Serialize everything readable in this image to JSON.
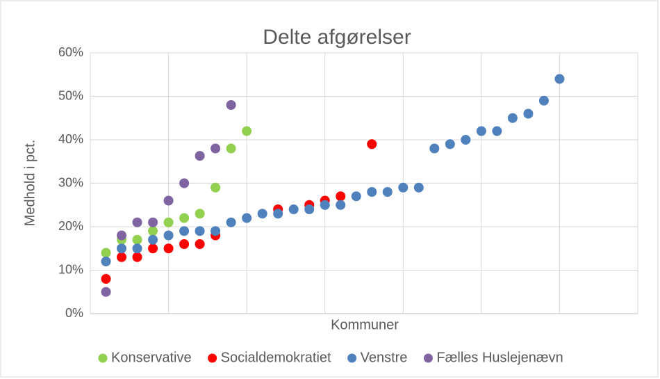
{
  "chart_data": {
    "type": "scatter",
    "title": "Delte afgørelser",
    "x_label": "Kommuner",
    "y_label": "Medhold i pct.",
    "xlim": [
      0,
      35
    ],
    "xticks": [
      0,
      5,
      10,
      15,
      20,
      25,
      30,
      35
    ],
    "ylim": [
      0,
      60
    ],
    "yticks": [
      {
        "value": 0,
        "label": "0%"
      },
      {
        "value": 10,
        "label": "10%"
      },
      {
        "value": 20,
        "label": "20%"
      },
      {
        "value": 30,
        "label": "30%"
      },
      {
        "value": 40,
        "label": "40%"
      },
      {
        "value": 50,
        "label": "50%"
      },
      {
        "value": 60,
        "label": "60%"
      }
    ],
    "grid": true,
    "legend": "bottom",
    "series": [
      {
        "name": "Konservative",
        "color": "#92d050",
        "x": [
          1,
          2,
          3,
          4,
          5,
          6,
          7,
          8,
          9,
          10
        ],
        "values": [
          14,
          17,
          17,
          19,
          21,
          22,
          23,
          29,
          38,
          42
        ]
      },
      {
        "name": "Socialdemokratiet",
        "color": "#ff0000",
        "x": [
          1,
          2,
          3,
          4,
          5,
          6,
          7,
          8,
          12,
          14,
          15,
          16,
          18
        ],
        "values": [
          8,
          13,
          13,
          15,
          15,
          16,
          16,
          18,
          24,
          25,
          26,
          27,
          39
        ]
      },
      {
        "name": "Venstre",
        "color": "#4f81bd",
        "x": [
          1,
          2,
          3,
          4,
          5,
          6,
          7,
          8,
          9,
          10,
          11,
          12,
          13,
          14,
          15,
          16,
          17,
          18,
          19,
          20,
          21,
          22,
          23,
          24,
          25,
          26,
          27,
          28,
          29,
          30
        ],
        "values": [
          12,
          15,
          15,
          17,
          18,
          19,
          19,
          19,
          21,
          22,
          23,
          23,
          24,
          24,
          25,
          25,
          27,
          28,
          28,
          29,
          29,
          38,
          39,
          40,
          42,
          42,
          45,
          46,
          49,
          54
        ]
      },
      {
        "name": "Fælles Huslejenævn",
        "color": "#8064a2",
        "x": [
          1,
          2,
          3,
          4,
          5,
          6,
          7,
          8,
          9
        ],
        "values": [
          5,
          18,
          21,
          21,
          26,
          30,
          36.3,
          38,
          48
        ]
      }
    ]
  }
}
